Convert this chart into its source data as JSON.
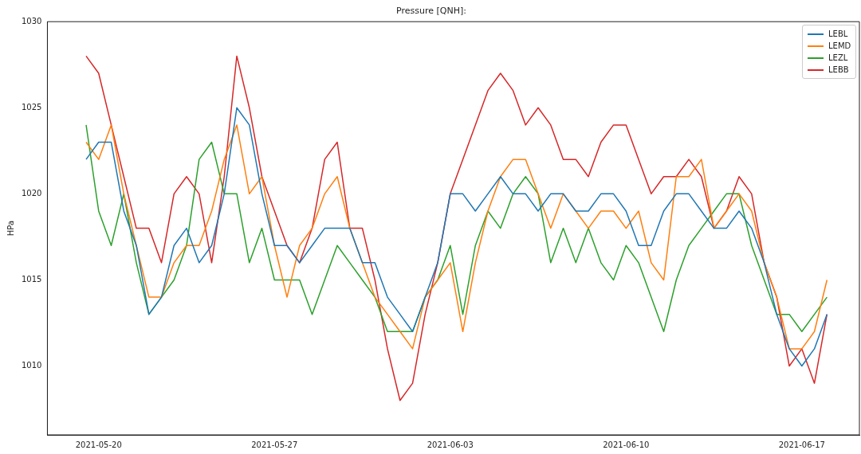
{
  "chart_data": {
    "type": "line",
    "title": "Pressure [QNH]:",
    "ylabel": "HPa",
    "x": [
      "2021-05-19T12:00",
      "2021-05-20T00:00",
      "2021-05-20T12:00",
      "2021-05-21T00:00",
      "2021-05-21T12:00",
      "2021-05-22T00:00",
      "2021-05-22T12:00",
      "2021-05-23T00:00",
      "2021-05-23T12:00",
      "2021-05-24T00:00",
      "2021-05-24T12:00",
      "2021-05-25T00:00",
      "2021-05-25T12:00",
      "2021-05-26T00:00",
      "2021-05-26T12:00",
      "2021-05-27T00:00",
      "2021-05-27T12:00",
      "2021-05-28T00:00",
      "2021-05-28T12:00",
      "2021-05-29T00:00",
      "2021-05-29T12:00",
      "2021-05-30T00:00",
      "2021-05-30T12:00",
      "2021-05-31T00:00",
      "2021-05-31T12:00",
      "2021-06-01T00:00",
      "2021-06-01T12:00",
      "2021-06-02T00:00",
      "2021-06-02T12:00",
      "2021-06-03T00:00",
      "2021-06-03T12:00",
      "2021-06-04T00:00",
      "2021-06-04T12:00",
      "2021-06-05T00:00",
      "2021-06-05T12:00",
      "2021-06-06T00:00",
      "2021-06-06T12:00",
      "2021-06-07T00:00",
      "2021-06-07T12:00",
      "2021-06-08T00:00",
      "2021-06-08T12:00",
      "2021-06-09T00:00",
      "2021-06-09T12:00",
      "2021-06-10T00:00",
      "2021-06-10T12:00",
      "2021-06-11T00:00",
      "2021-06-11T12:00",
      "2021-06-12T00:00",
      "2021-06-12T12:00",
      "2021-06-13T00:00",
      "2021-06-13T12:00",
      "2021-06-14T00:00",
      "2021-06-14T12:00",
      "2021-06-15T00:00",
      "2021-06-15T12:00",
      "2021-06-16T00:00",
      "2021-06-16T12:00",
      "2021-06-17T00:00",
      "2021-06-17T12:00",
      "2021-06-18T00:00"
    ],
    "series": [
      {
        "name": "LEBL",
        "color": "#1f77b4",
        "values": [
          1022,
          1023,
          1023,
          1019,
          1017,
          1013,
          1014,
          1017,
          1018,
          1016,
          1017,
          1020,
          1025,
          1024,
          1020,
          1017,
          1017,
          1016,
          1017,
          1018,
          1018,
          1018,
          1016,
          1016,
          1014,
          1013,
          1012,
          1014,
          1016,
          1020,
          1020,
          1019,
          1020,
          1021,
          1020,
          1020,
          1019,
          1020,
          1020,
          1019,
          1019,
          1020,
          1020,
          1019,
          1017,
          1017,
          1019,
          1020,
          1020,
          1019,
          1018,
          1018,
          1019,
          1018,
          1016,
          1013,
          1011,
          1010,
          1011,
          1013
        ]
      },
      {
        "name": "LEMD",
        "color": "#ff7f0e",
        "values": [
          1023,
          1022,
          1024,
          1020,
          1017,
          1014,
          1014,
          1016,
          1017,
          1017,
          1019,
          1022,
          1024,
          1020,
          1021,
          1017,
          1014,
          1017,
          1018,
          1020,
          1021,
          1018,
          1016,
          1014,
          1013,
          1012,
          1011,
          1014,
          1015,
          1016,
          1012,
          1016,
          1019,
          1021,
          1022,
          1022,
          1020,
          1018,
          1020,
          1019,
          1018,
          1019,
          1019,
          1018,
          1019,
          1016,
          1015,
          1021,
          1021,
          1022,
          1018,
          1019,
          1020,
          1019,
          1016,
          1014,
          1011,
          1011,
          1012,
          1015
        ]
      },
      {
        "name": "LEZL",
        "color": "#2ca02c",
        "values": [
          1024,
          1019,
          1017,
          1020,
          1016,
          1013,
          1014,
          1015,
          1017,
          1022,
          1023,
          1020,
          1020,
          1016,
          1018,
          1015,
          1015,
          1015,
          1013,
          1015,
          1017,
          1016,
          1015,
          1014,
          1012,
          1012,
          1012,
          1014,
          1015,
          1017,
          1013,
          1017,
          1019,
          1018,
          1020,
          1021,
          1020,
          1016,
          1018,
          1016,
          1018,
          1016,
          1015,
          1017,
          1016,
          1014,
          1012,
          1015,
          1017,
          1018,
          1019,
          1020,
          1020,
          1017,
          1015,
          1013,
          1013,
          1012,
          1013,
          1014
        ]
      },
      {
        "name": "LEBB",
        "color": "#d62728",
        "values": [
          1028,
          1027,
          1024,
          1021,
          1018,
          1018,
          1016,
          1020,
          1021,
          1020,
          1016,
          1021,
          1028,
          1025,
          1021,
          1019,
          1017,
          1016,
          1018,
          1022,
          1023,
          1018,
          1018,
          1015,
          1011,
          1008,
          1009,
          1013,
          1016,
          1020,
          1022,
          1024,
          1026,
          1027,
          1026,
          1024,
          1025,
          1024,
          1022,
          1022,
          1021,
          1023,
          1024,
          1024,
          1022,
          1020,
          1021,
          1021,
          1022,
          1021,
          1018,
          1019,
          1021,
          1020,
          1016,
          1014,
          1010,
          1011,
          1009,
          1013
        ]
      }
    ],
    "xlim": [
      "2021-05-17T23:00",
      "2021-06-19T07:00"
    ],
    "xticks": [
      "2021-05-20",
      "2021-05-27",
      "2021-06-03",
      "2021-06-10",
      "2021-06-17"
    ],
    "ylim": [
      1006,
      1030
    ],
    "yticks": [
      1010,
      1015,
      1020,
      1025,
      1030
    ],
    "grid": false,
    "legend": "top right",
    "marker": "none",
    "line_style": "solid"
  }
}
